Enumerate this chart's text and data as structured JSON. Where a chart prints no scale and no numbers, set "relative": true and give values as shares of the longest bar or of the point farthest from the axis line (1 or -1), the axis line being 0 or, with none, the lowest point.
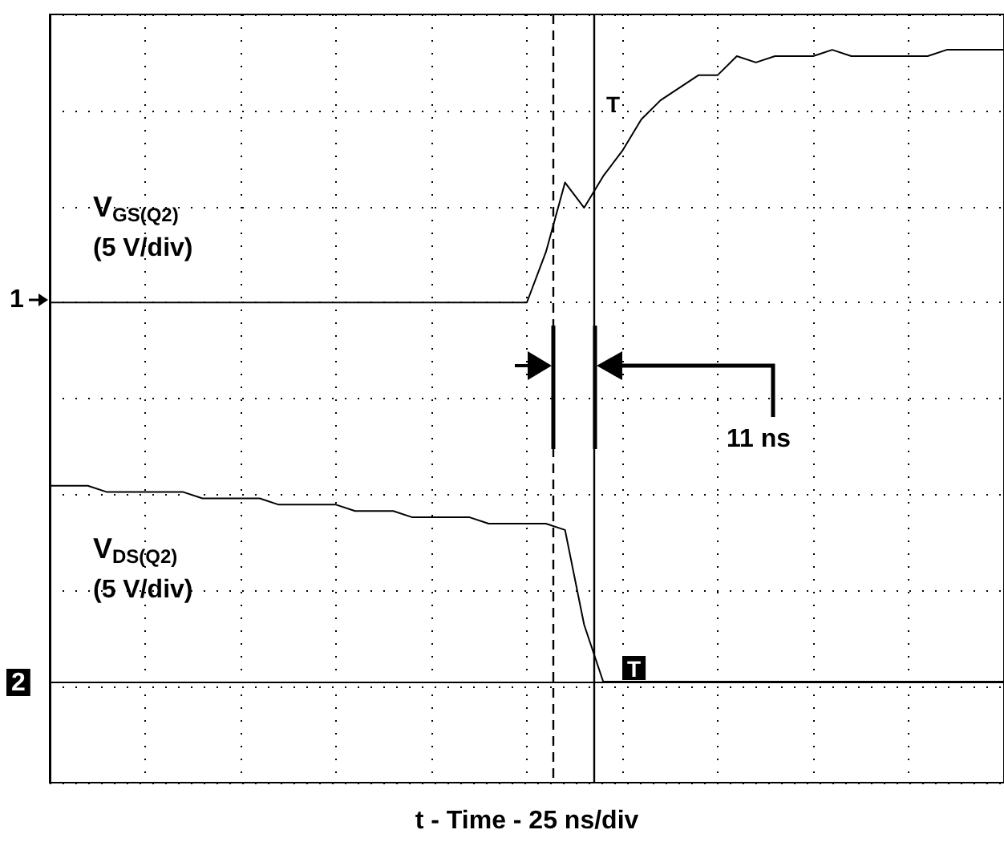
{
  "chart_data": {
    "type": "line",
    "xlabel": "t - Time - 25 ns/div",
    "relative": true,
    "categories": [
      null,
      null,
      null,
      null,
      null,
      null,
      null,
      null,
      null,
      null,
      null,
      null,
      null,
      null,
      null,
      null,
      null,
      null,
      null,
      null,
      null,
      null,
      null,
      null,
      null,
      null,
      null,
      null,
      null,
      null,
      null,
      null,
      null,
      null,
      null,
      null,
      null,
      null,
      null,
      null,
      null,
      null,
      null,
      null,
      null,
      null,
      null,
      null,
      null,
      null,
      null
    ],
    "tick_labels": false,
    "grid": true,
    "marker": "none",
    "line_style": "solid",
    "series": [
      {
        "name": "V$_{GS(Q2)}$",
        "color": "#000000",
        "values": [
          0.6,
          0.6,
          0.6,
          0.6,
          0.6,
          0.6,
          0.6,
          0.6,
          0.6,
          0.6,
          0.6,
          0.6,
          0.6,
          0.6,
          0.6,
          0.6,
          0.6,
          0.6,
          0.6,
          0.6,
          0.6,
          0.6,
          0.6,
          0.6,
          0.6,
          0.6,
          0.68,
          0.79,
          0.75,
          0.8,
          0.84,
          0.89,
          0.92,
          0.94,
          0.96,
          0.96,
          0.99,
          0.98,
          0.99,
          0.99,
          0.99,
          1,
          0.99,
          0.99,
          0.99,
          0.99,
          0.99,
          1,
          1,
          1,
          1
        ]
      },
      {
        "name": "V$_{DS(Q2)}$",
        "color": "#000000",
        "values": [
          0.31,
          0.31,
          0.31,
          0.3,
          0.3,
          0.3,
          0.3,
          0.3,
          0.29,
          0.29,
          0.29,
          0.29,
          0.28,
          0.28,
          0.28,
          0.28,
          0.27,
          0.27,
          0.27,
          0.26,
          0.26,
          0.26,
          0.26,
          0.25,
          0.25,
          0.25,
          0.25,
          0.24,
          0.09,
          0,
          0,
          0,
          0,
          0,
          0,
          0,
          0,
          0,
          0,
          0,
          0,
          0,
          0,
          0,
          0,
          0,
          0,
          0,
          0,
          0,
          0
        ]
      }
    ],
    "annotations": [
      "(5 V/div)",
      "(5 V/div)",
      "11 ns",
      "1",
      "2",
      "T",
      "T"
    ]
  }
}
